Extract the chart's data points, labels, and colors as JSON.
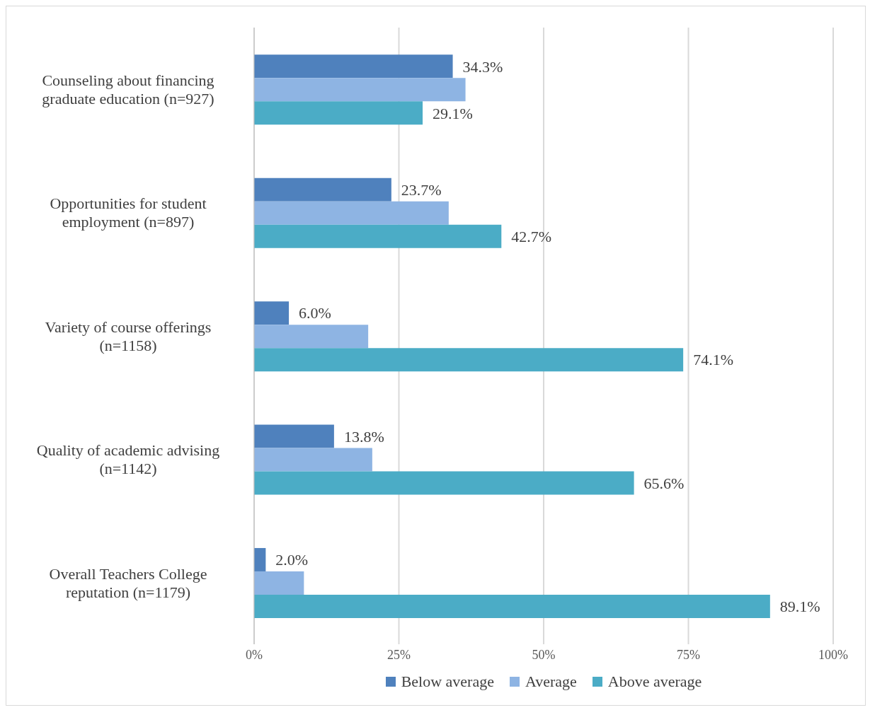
{
  "chart_data": {
    "type": "bar",
    "orientation": "horizontal",
    "categories": [
      "Counseling about financing graduate education (n=927)",
      "Opportunities for student employment (n=897)",
      "Variety of course offerings (n=1158)",
      "Quality of academic advising (n=1142)",
      "Overall Teachers College reputation (n=1179)"
    ],
    "series": [
      {
        "name": "Below average",
        "color": "#4f81bd",
        "values": [
          34.3,
          23.7,
          6.0,
          13.8,
          2.0
        ],
        "value_labels": [
          "34.3%",
          "23.7%",
          "6.0%",
          "13.8%",
          "2.0%"
        ]
      },
      {
        "name": "Average",
        "color": "#8eb4e3",
        "values": [
          36.5,
          33.6,
          19.7,
          20.4,
          8.6
        ]
      },
      {
        "name": "Above average",
        "color": "#4bacc6",
        "values": [
          29.1,
          42.7,
          74.1,
          65.6,
          89.1
        ],
        "value_labels": [
          "29.1%",
          "42.7%",
          "74.1%",
          "65.6%",
          "89.1%"
        ]
      }
    ],
    "xlim": [
      0,
      100
    ],
    "xticks": [
      {
        "value": 0,
        "label": "0%"
      },
      {
        "value": 25,
        "label": "25%"
      },
      {
        "value": 50,
        "label": "50%"
      },
      {
        "value": 75,
        "label": "75%"
      },
      {
        "value": 100,
        "label": "100%"
      }
    ],
    "grid": "x",
    "legend": "bottom"
  }
}
